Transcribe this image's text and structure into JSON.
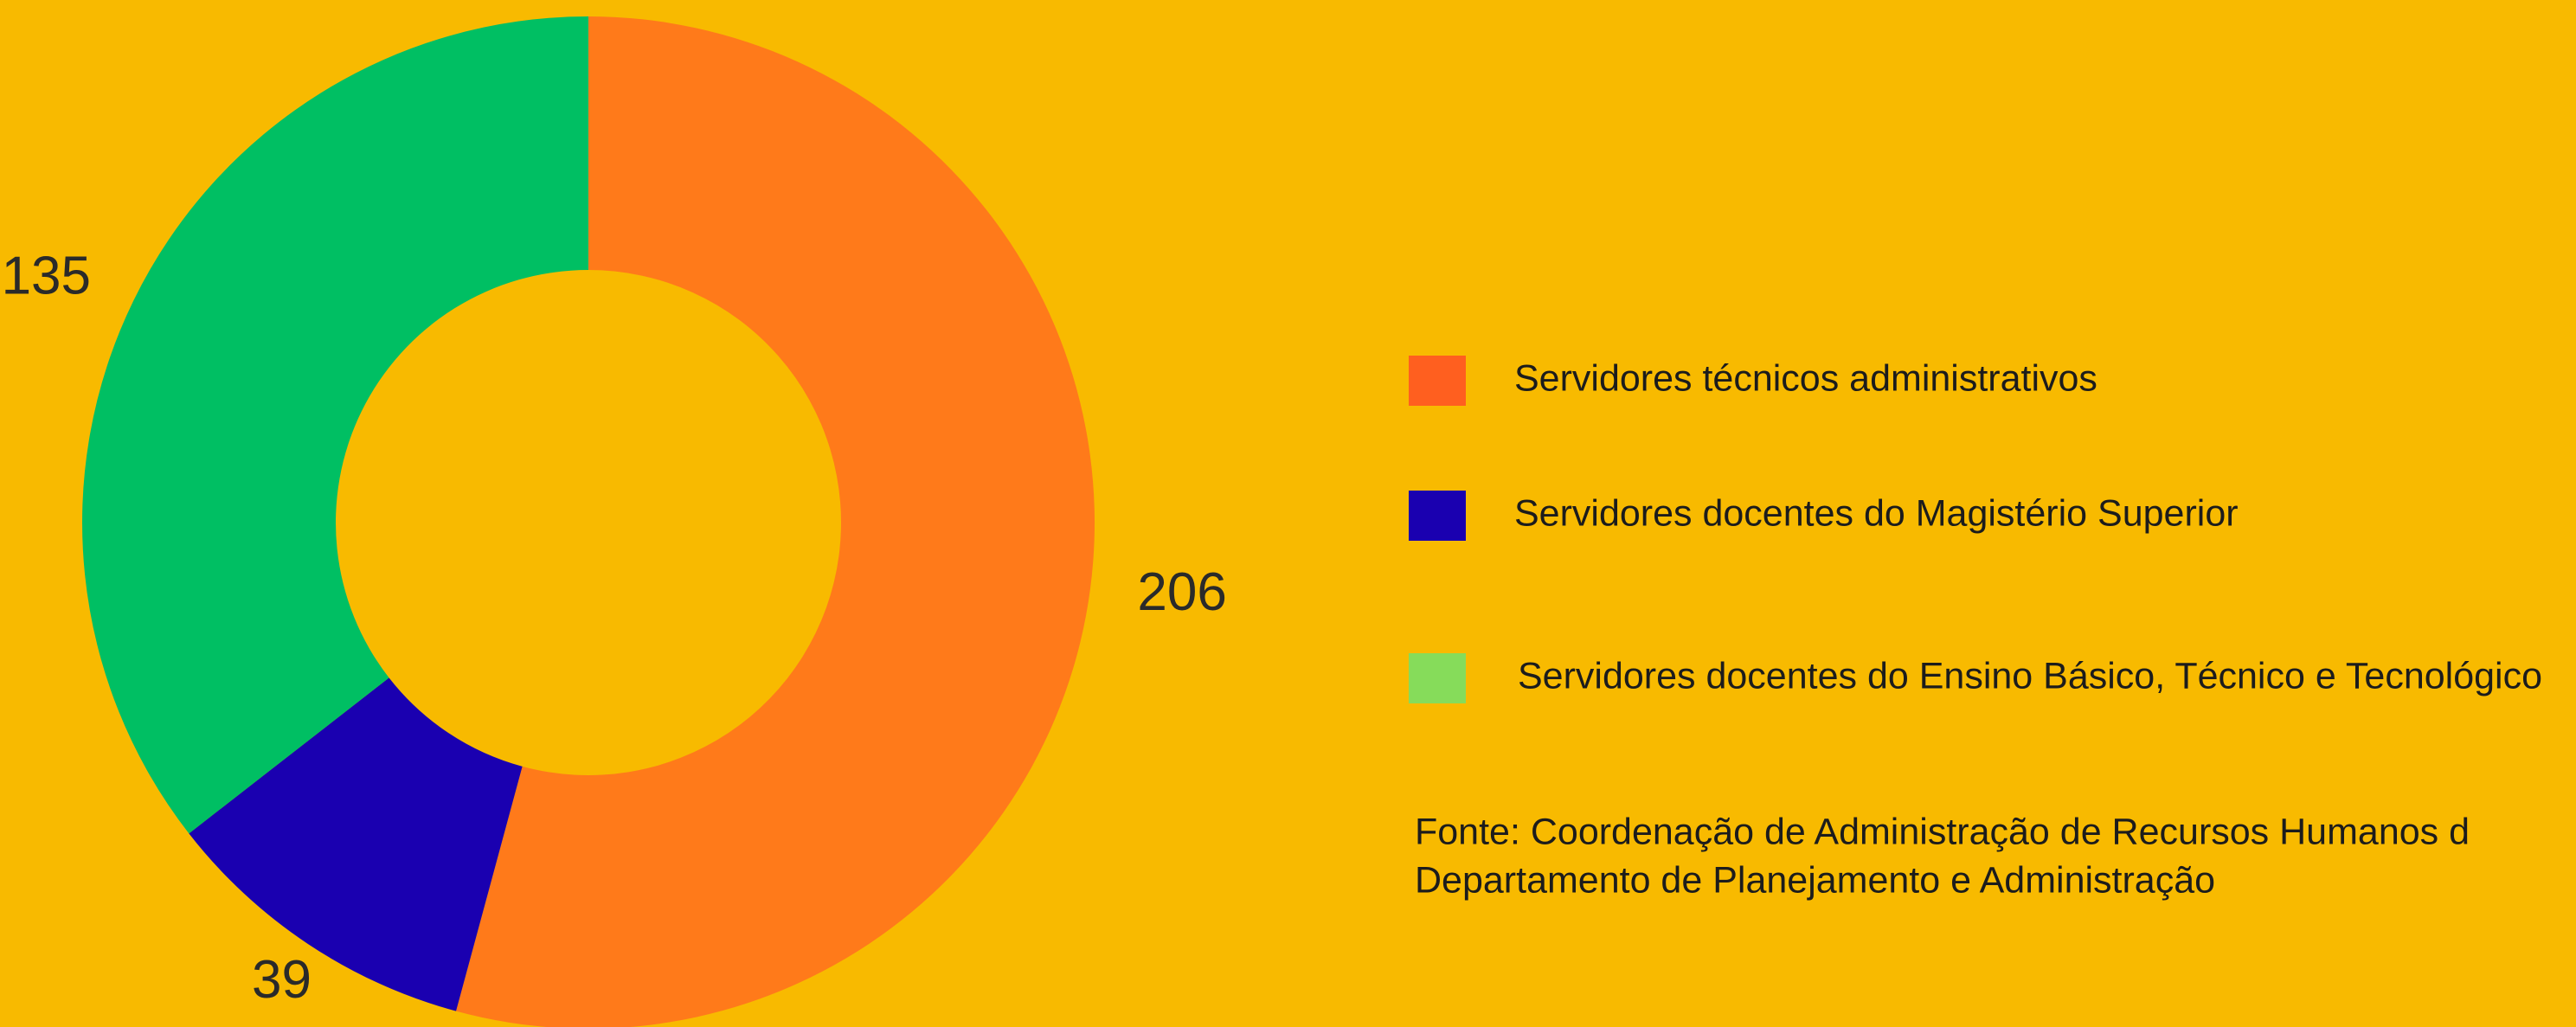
{
  "chart_data": {
    "type": "donut",
    "categories": [
      "Servidores técnicos administrativos",
      "Servidores docentes do Magistério Superior",
      "Servidores docentes do Ensino Básico, Técnico e Tecnológico"
    ],
    "values": [
      206,
      39,
      135
    ],
    "colors": [
      "#FF7A1A",
      "#1A00B0",
      "#00BF63"
    ],
    "legend_colors": [
      "#FF5F1F",
      "#1A00B0",
      "#86DC5A"
    ],
    "source": [
      "Fonte: Coordenação de Administração de Recursos Humanos d",
      "Departamento de Planejamento e Administração"
    ]
  }
}
